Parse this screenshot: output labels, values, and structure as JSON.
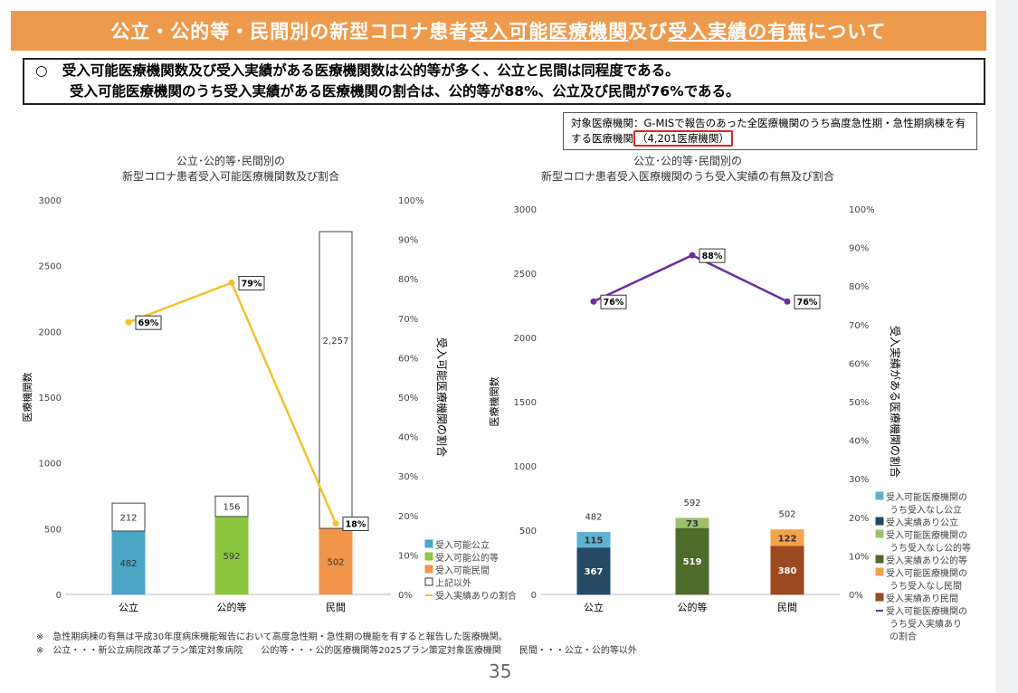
{
  "title": {
    "part1": "公立・公的等・民間別の新型コロナ患者",
    "u1": "受入可能医療機関",
    "part2": "及び",
    "u2": "受入実績の有無",
    "part3": "について"
  },
  "summary": {
    "bullet": "○",
    "line1": "受入可能医療機関数及び受入実績がある医療機関数は公的等が多く、公立と民間は同程度である。",
    "line2": "受入可能医療機関のうち受入実績がある医療機関の割合は、公的等が88%、公立及び民間が76%である。"
  },
  "note": {
    "text": "対象医療機関：G-MISで報告のあった全医療機関のうち高度急性期・急性期病棟を有する医療機関",
    "highlight": "（4,201医療機関）"
  },
  "footnotes": [
    "※　急性期病棟の有無は平成30年度病床機能報告において高度急性期・急性期の機能を有すると報告した医療機関。",
    "※　公立・・・新公立病院改革プラン策定対象病院　　公的等・・・公的医療機関等2025プラン策定対象医療機関　　民間・・・公立・公的等以外"
  ],
  "page_number": "35",
  "chart_data": [
    {
      "type": "bar",
      "stacked": true,
      "title": "公立･公的等･民間別の\n新型コロナ患者受入可能医療機関数及び割合",
      "title_lines": [
        "公立･公的等･民間別の",
        "新型コロナ患者受入可能医療機関数及び割合"
      ],
      "categories": [
        "公立",
        "公的等",
        "民間"
      ],
      "ylabel": "医療機関数",
      "y2label": "受入可能医療機関の割合",
      "ylim": [
        0,
        3000
      ],
      "yticks": [
        "0",
        "500",
        "1000",
        "1500",
        "2000",
        "2500",
        "3000"
      ],
      "y2lim": [
        0,
        100
      ],
      "y2ticks": [
        "0%",
        "10%",
        "20%",
        "30%",
        "40%",
        "50%",
        "60%",
        "70%",
        "80%",
        "90%",
        "100%"
      ],
      "series": [
        {
          "name": "受入可能公立",
          "values": [
            482,
            null,
            null
          ],
          "labels": [
            "482",
            "",
            ""
          ],
          "color": "#4ba5c5"
        },
        {
          "name": "受入可能公的等",
          "values": [
            null,
            592,
            null
          ],
          "labels": [
            "",
            "592",
            ""
          ],
          "color": "#8dc63f"
        },
        {
          "name": "受入可能民間",
          "values": [
            null,
            null,
            502
          ],
          "labels": [
            "",
            "",
            "502"
          ],
          "color": "#f0954a"
        },
        {
          "name": "上記以外",
          "values": [
            212,
            156,
            2257
          ],
          "labels": [
            "212",
            "156",
            "2,257"
          ],
          "color": "#ffffff"
        }
      ],
      "line": {
        "name": "受入実績ありの割合",
        "values": [
          69,
          79,
          18
        ],
        "labels": [
          "69%",
          "79%",
          "18%"
        ],
        "color": "#f2c12e"
      },
      "legend": "right-bottom"
    },
    {
      "type": "bar",
      "stacked": true,
      "title_lines": [
        "公立･公的等･民間別の",
        "新型コロナ患者受入医療機関のうち受入実績の有無及び割合"
      ],
      "categories": [
        "公立",
        "公的等",
        "民間"
      ],
      "ylabel": "医療機関数",
      "y2label": "受入実績がある医療機関の割合",
      "ylim": [
        0,
        3000
      ],
      "yticks": [
        "0",
        "500",
        "1000",
        "1500",
        "2000",
        "2500",
        "3000"
      ],
      "y2lim": [
        0,
        100
      ],
      "y2ticks": [
        "0%",
        "10%",
        "20%",
        "30%",
        "40%",
        "50%",
        "60%",
        "70%",
        "80%",
        "90%",
        "100%"
      ],
      "totals": [
        "482",
        "592",
        "502"
      ],
      "series": [
        {
          "name": "受入実績あり公立",
          "values": [
            367,
            null,
            null
          ],
          "labels": [
            "367",
            "",
            ""
          ],
          "color": "#264a63"
        },
        {
          "name": "受入可能医療機関のうち受入なし公立",
          "values": [
            115,
            null,
            null
          ],
          "labels": [
            "115",
            "",
            ""
          ],
          "color": "#5fb1d1"
        },
        {
          "name": "受入実績あり公的等",
          "values": [
            null,
            519,
            null
          ],
          "labels": [
            "",
            "519",
            ""
          ],
          "color": "#4e6b2b"
        },
        {
          "name": "受入可能医療機関のうち受入なし公的等",
          "values": [
            null,
            73,
            null
          ],
          "labels": [
            "",
            "73",
            ""
          ],
          "color": "#9cc06a"
        },
        {
          "name": "受入実績あり民間",
          "values": [
            null,
            null,
            380
          ],
          "labels": [
            "",
            "",
            "380"
          ],
          "color": "#9b4a22"
        },
        {
          "name": "受入可能医療機関のうち受入なし民間",
          "values": [
            null,
            null,
            122
          ],
          "labels": [
            "",
            "",
            "122"
          ],
          "color": "#f5a04a"
        }
      ],
      "legend_order": [
        1,
        0,
        3,
        2,
        5,
        4
      ],
      "line": {
        "name": "受入可能医療機関のうち受入実績ありの割合",
        "values": [
          76,
          88,
          76
        ],
        "labels": [
          "76%",
          "88%",
          "76%"
        ],
        "color": "#6a2fa0"
      },
      "legend": "right-bottom"
    }
  ]
}
